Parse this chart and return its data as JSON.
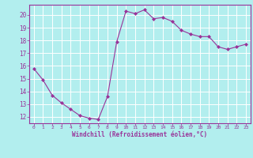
{
  "x": [
    0,
    1,
    2,
    3,
    4,
    5,
    6,
    7,
    8,
    9,
    10,
    11,
    12,
    13,
    14,
    15,
    16,
    17,
    18,
    19,
    20,
    21,
    22,
    23
  ],
  "y": [
    15.8,
    14.9,
    13.7,
    13.1,
    12.6,
    12.1,
    11.9,
    11.8,
    13.6,
    17.9,
    20.3,
    20.1,
    20.4,
    19.7,
    19.8,
    19.5,
    18.8,
    18.5,
    18.3,
    18.3,
    17.5,
    17.3,
    17.5,
    17.7
  ],
  "line_color": "#993399",
  "marker": "D",
  "marker_size": 2.0,
  "bg_color": "#b2eeee",
  "grid_color": "#ffffff",
  "xlabel": "Windchill (Refroidissement éolien,°C)",
  "xlabel_color": "#993399",
  "tick_color": "#993399",
  "spine_color": "#993399",
  "ylim": [
    11.5,
    20.8
  ],
  "xlim": [
    -0.5,
    23.5
  ],
  "yticks": [
    12,
    13,
    14,
    15,
    16,
    17,
    18,
    19,
    20
  ],
  "xticks": [
    0,
    1,
    2,
    3,
    4,
    5,
    6,
    7,
    8,
    9,
    10,
    11,
    12,
    13,
    14,
    15,
    16,
    17,
    18,
    19,
    20,
    21,
    22,
    23
  ],
  "figsize": [
    3.2,
    2.0
  ],
  "dpi": 100
}
